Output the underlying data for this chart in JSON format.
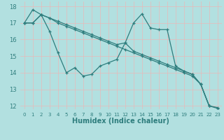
{
  "xlabel": "Humidex (Indice chaleur)",
  "ylabel": "",
  "background_color": "#b2e0e0",
  "grid_color": "#e8b8b8",
  "line_color": "#2e7d7d",
  "xlim": [
    -0.5,
    23.5
  ],
  "ylim": [
    11.8,
    18.3
  ],
  "x_ticks": [
    0,
    1,
    2,
    3,
    4,
    5,
    6,
    7,
    8,
    9,
    10,
    11,
    12,
    13,
    14,
    15,
    16,
    17,
    18,
    19,
    20,
    21,
    22,
    23
  ],
  "y_ticks": [
    12,
    13,
    14,
    15,
    16,
    17,
    18
  ],
  "series1_x": [
    0,
    1,
    2,
    3,
    4,
    5,
    6,
    7,
    8,
    9,
    10,
    11,
    12,
    13,
    14,
    15,
    16,
    17,
    18,
    19,
    20,
    21,
    22
  ],
  "series1_y": [
    17.0,
    17.8,
    17.5,
    16.5,
    15.2,
    14.0,
    14.3,
    13.8,
    13.9,
    14.4,
    14.6,
    14.8,
    15.8,
    17.0,
    17.55,
    16.7,
    16.6,
    16.6,
    14.4,
    14.1,
    13.9,
    13.3,
    12.0
  ],
  "series2_x": [
    0,
    1,
    2,
    3,
    4,
    5,
    6,
    7,
    8,
    9,
    10,
    11,
    12,
    13,
    14,
    15,
    16,
    17,
    18,
    19,
    20,
    21,
    22,
    23
  ],
  "series2_y": [
    17.0,
    17.0,
    17.5,
    17.3,
    17.1,
    16.9,
    16.7,
    16.5,
    16.3,
    16.1,
    15.9,
    15.7,
    15.8,
    15.3,
    15.1,
    14.9,
    14.7,
    14.5,
    14.3,
    14.1,
    13.9,
    13.3,
    12.0,
    11.9
  ],
  "series3_x": [
    0,
    1,
    2,
    3,
    4,
    5,
    6,
    7,
    8,
    9,
    10,
    11,
    12,
    13,
    14,
    15,
    16,
    17,
    18,
    19,
    20,
    21,
    22,
    23
  ],
  "series3_y": [
    17.0,
    17.0,
    17.5,
    17.3,
    17.0,
    16.8,
    16.6,
    16.4,
    16.2,
    16.0,
    15.8,
    15.6,
    15.4,
    15.2,
    15.0,
    14.8,
    14.6,
    14.4,
    14.2,
    14.0,
    13.8,
    13.3,
    12.0,
    11.85
  ]
}
